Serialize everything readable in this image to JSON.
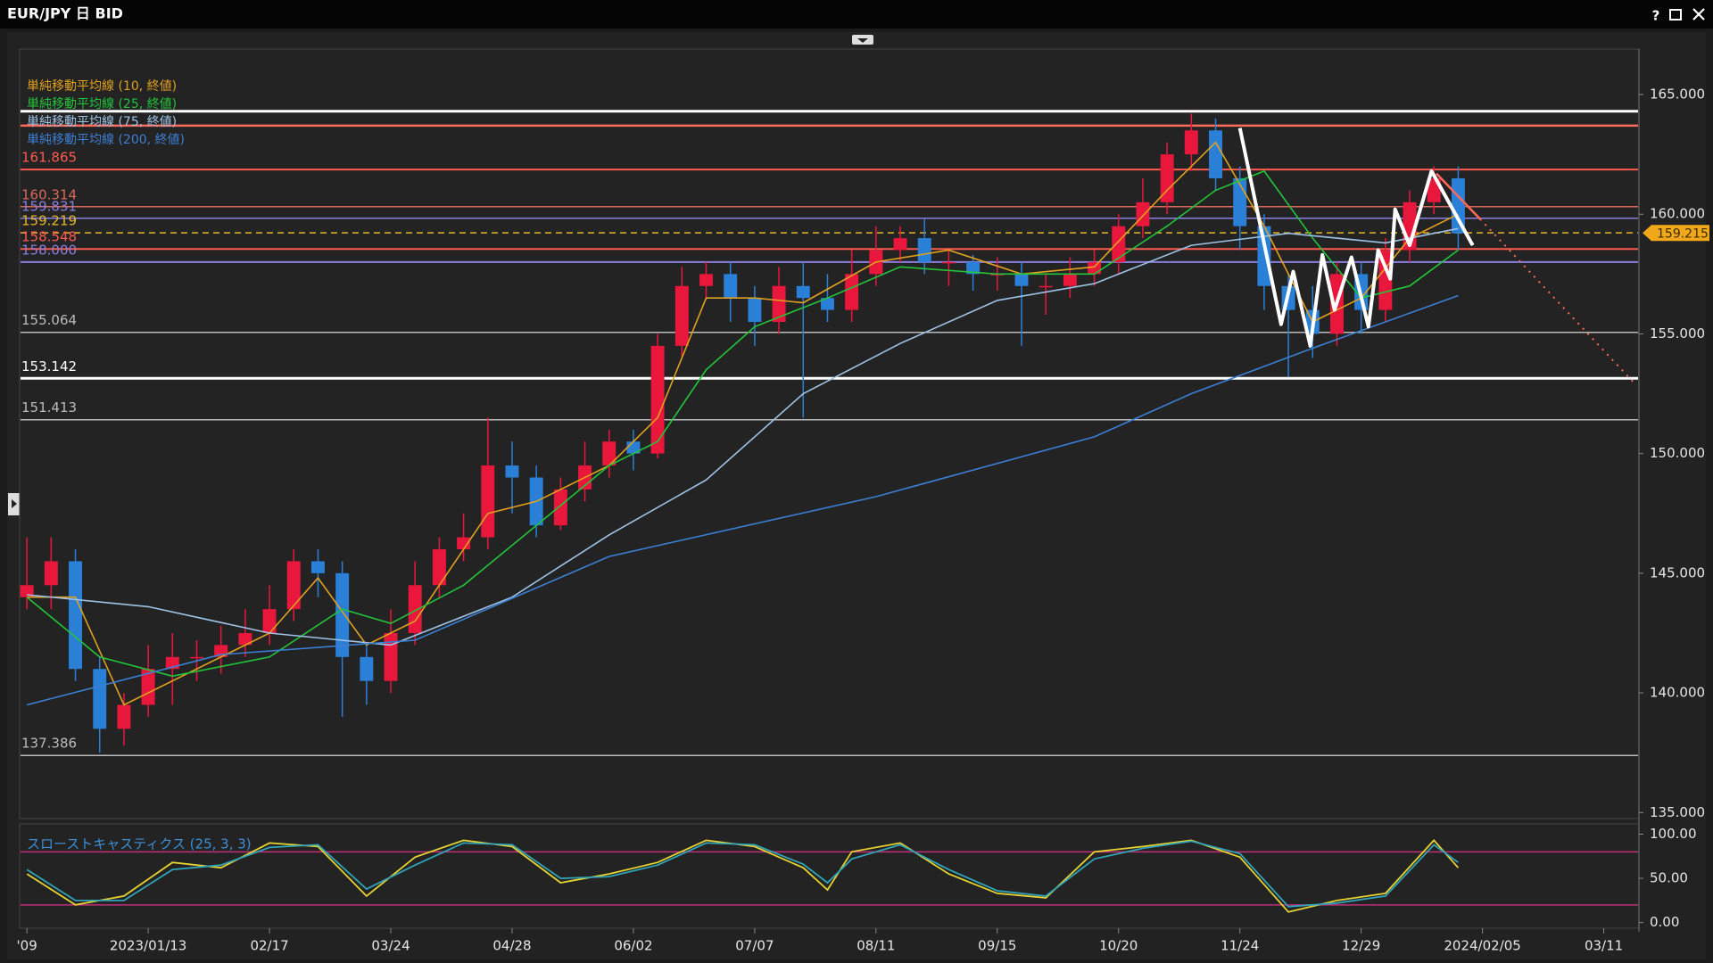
{
  "window": {
    "title": "EUR/JPY 日 BID",
    "help": "?"
  },
  "chart_data": [
    {
      "type": "candlestick",
      "xlim": [
        -0.3,
        66.45
      ],
      "ylim": [
        134.75,
        166.9
      ],
      "xticks": [
        {
          "value": 0,
          "label": "'09"
        },
        {
          "value": 5,
          "label": "2023/01/13"
        },
        {
          "value": 10,
          "label": "02/17"
        },
        {
          "value": 15,
          "label": "03/24"
        },
        {
          "value": 20,
          "label": "04/28"
        },
        {
          "value": 25,
          "label": "06/02"
        },
        {
          "value": 30,
          "label": "07/07"
        },
        {
          "value": 35,
          "label": "08/11"
        },
        {
          "value": 40,
          "label": "09/15"
        },
        {
          "value": 45,
          "label": "10/20"
        },
        {
          "value": 50,
          "label": "11/24"
        },
        {
          "value": 55,
          "label": "12/29"
        },
        {
          "value": 60,
          "label": "2024/02/05"
        },
        {
          "value": 65,
          "label": "03/11"
        }
      ],
      "yticks": [
        {
          "value": 135,
          "label": "135.000"
        },
        {
          "value": 140,
          "label": "140.000"
        },
        {
          "value": 145,
          "label": "145.000"
        },
        {
          "value": 150,
          "label": "150.000"
        },
        {
          "value": 155,
          "label": "155.000"
        },
        {
          "value": 160,
          "label": "160.000"
        },
        {
          "value": 165,
          "label": "165.000"
        }
      ],
      "up_color": "#e8173b",
      "down_color": "#2a7fd6",
      "x": [
        0,
        1,
        2,
        3,
        4,
        5,
        6,
        7,
        8,
        9,
        10,
        11,
        12,
        13,
        14,
        15,
        16,
        17,
        18,
        19,
        20,
        21,
        22,
        23,
        24,
        25,
        26,
        27,
        28,
        29,
        30,
        31,
        32,
        33,
        34,
        35,
        36,
        37,
        38,
        39,
        40,
        41,
        42,
        43,
        44,
        45,
        46,
        47,
        48,
        49,
        50,
        51,
        52,
        53,
        54,
        55,
        56,
        57,
        58,
        59
      ],
      "open": [
        144,
        144.5,
        145.5,
        141,
        138.5,
        139.5,
        141,
        141.5,
        141.5,
        142,
        142.5,
        143.5,
        145.5,
        145,
        141.5,
        140.5,
        142.5,
        144.5,
        146,
        146.5,
        149.5,
        149,
        147,
        148.5,
        149.5,
        150.5,
        150,
        154.5,
        157,
        157.5,
        156.5,
        155.5,
        157,
        156.5,
        156,
        157.5,
        158.5,
        159,
        158,
        158,
        157.5,
        157.5,
        157,
        157,
        157.5,
        158,
        159.5,
        160.5,
        162.5,
        163.5,
        161.5,
        159.5,
        157,
        156,
        155,
        157.5,
        156,
        158.5,
        160.5,
        161.5
      ],
      "high": [
        146.5,
        146.5,
        146,
        141.5,
        140,
        142,
        142.5,
        142.2,
        142.8,
        143.5,
        144.5,
        146,
        146,
        145.5,
        142,
        143.5,
        145.5,
        146.5,
        147.5,
        151.5,
        150.5,
        149.5,
        149,
        150.5,
        151,
        151,
        155,
        157.8,
        158,
        158,
        157,
        157.8,
        158,
        157.5,
        158.5,
        159.5,
        159.5,
        159.8,
        158.5,
        158.3,
        158.2,
        158,
        157.5,
        158.2,
        158.5,
        160,
        161.5,
        163,
        164.2,
        164,
        162,
        160,
        157.5,
        157,
        158,
        158,
        159,
        161,
        162,
        162
      ],
      "low": [
        143.5,
        143.5,
        140.5,
        137.5,
        137.8,
        139,
        139.5,
        140.5,
        140.8,
        141.5,
        142,
        143,
        144,
        139,
        139.5,
        140,
        142,
        144,
        145.5,
        146,
        147.5,
        146.5,
        146.8,
        148,
        149,
        149.3,
        149.8,
        154,
        156.5,
        155.5,
        154.5,
        155,
        151.5,
        155.5,
        155.5,
        157,
        158,
        157.5,
        157,
        156.8,
        156.8,
        154.5,
        155.8,
        156.5,
        157,
        157.5,
        159,
        160,
        161.8,
        161,
        158.5,
        156,
        153.2,
        154,
        154.5,
        155,
        155.5,
        158,
        160,
        158.5
      ],
      "close": [
        144.5,
        145.5,
        141,
        138.5,
        139.5,
        141,
        141.5,
        141.5,
        142,
        142.5,
        143.5,
        145.5,
        145,
        141.5,
        140.5,
        142.5,
        144.5,
        146,
        146.5,
        149.5,
        149,
        147,
        148.5,
        149.5,
        150.5,
        150,
        154.5,
        157,
        157.5,
        156.5,
        155.5,
        157,
        156.5,
        156,
        157.5,
        158.5,
        159,
        158,
        158,
        157.5,
        157.5,
        157,
        157,
        157.5,
        158,
        159.5,
        160.5,
        162.5,
        163.5,
        161.5,
        159.5,
        157,
        156,
        155,
        157.5,
        156,
        158.5,
        160.5,
        161.5,
        159.2
      ],
      "series": [
        {
          "name": "単純移動平均線 (10, 終値)",
          "color": "#e0a020",
          "x": [
            0,
            2,
            4,
            7,
            10,
            12,
            14,
            16,
            19,
            21,
            24,
            26,
            28,
            30,
            32,
            35,
            38,
            41,
            44,
            47,
            49,
            51,
            53,
            55,
            57,
            59
          ],
          "values": [
            144,
            144,
            139.5,
            141,
            142.5,
            144.8,
            142,
            143,
            147.5,
            148,
            149.5,
            151.5,
            156.5,
            156.5,
            156.3,
            158,
            158.5,
            157.5,
            157.8,
            161,
            163,
            159.5,
            155.5,
            156.5,
            159,
            160
          ]
        },
        {
          "name": "単純移動平均線 (25, 終値)",
          "color": "#22c43a",
          "x": [
            0,
            3,
            6,
            10,
            13,
            15,
            18,
            21,
            24,
            26,
            28,
            30,
            33,
            36,
            40,
            44,
            47,
            49,
            51,
            53,
            55,
            57,
            59
          ],
          "values": [
            144,
            141.5,
            140.7,
            141.5,
            143.5,
            142.9,
            144.5,
            147,
            149.5,
            150.5,
            153.5,
            155.3,
            156.5,
            157.8,
            157.5,
            157.5,
            159.5,
            161,
            161.8,
            159,
            156.5,
            157,
            158.5
          ]
        },
        {
          "name": "単純移動平均線 (75, 終値)",
          "color": "#9ec3e6",
          "x": [
            0,
            5,
            10,
            15,
            20,
            24,
            28,
            32,
            36,
            40,
            44,
            48,
            52,
            56,
            59
          ],
          "values": [
            144.1,
            143.6,
            142.5,
            142,
            144,
            146.6,
            148.9,
            152.5,
            154.6,
            156.4,
            157.1,
            158.7,
            159.2,
            158.8,
            159.4
          ]
        },
        {
          "name": "単純移動平均線 (200, 終値)",
          "color": "#3b7fd4",
          "x": [
            0,
            8,
            16,
            24,
            35,
            44,
            48,
            53,
            59
          ],
          "values": [
            139.5,
            141.6,
            142.2,
            145.7,
            148.2,
            150.7,
            152.5,
            154.4,
            156.6
          ]
        }
      ],
      "levels": [
        {
          "value": 164.3,
          "color": "#ffffff",
          "width": 3
        },
        {
          "value": 163.7,
          "color": "#ff6b5b",
          "width": 2.5
        },
        {
          "value": 161.865,
          "color": "#ff5a4f",
          "width": 2,
          "show_label": true
        },
        {
          "value": 160.314,
          "color": "#d9685a",
          "width": 1.5,
          "show_label": true
        },
        {
          "value": 159.831,
          "color": "#8a7ee0",
          "width": 1.5,
          "show_label": true
        },
        {
          "value": 159.219,
          "color": "#e7b52a",
          "width": 1.5,
          "dash": true,
          "show_label": true
        },
        {
          "value": 158.548,
          "color": "#ff5a4f",
          "width": 2,
          "show_label": true
        },
        {
          "value": 158.0,
          "label": "158.000",
          "color": "#8a7ee0",
          "width": 2,
          "show_label": true
        },
        {
          "value": 155.064,
          "color": "#bbbbbb",
          "width": 1.5,
          "show_label": true
        },
        {
          "value": 153.142,
          "color": "#ffffff",
          "width": 3,
          "show_label": true
        },
        {
          "value": 151.413,
          "color": "#bbbbbb",
          "width": 1.5,
          "show_label": true
        },
        {
          "value": 137.386,
          "color": "#bbbbbb",
          "width": 1.5,
          "show_label": true
        }
      ],
      "price_tag": {
        "value": 159.215,
        "label": "159.215",
        "color": "#f0a81a"
      },
      "drawings": [
        {
          "color": "#ffffff",
          "x": [
            50.0,
            51.7,
            52.2,
            52.9,
            53.4,
            53.9,
            54.6,
            55.3,
            55.7,
            56.2,
            56.4,
            57.0,
            57.9,
            59.6
          ],
          "y": [
            163.6,
            155.4,
            157.6,
            154.5,
            158.3,
            156.0,
            158.2,
            155.3,
            158.5,
            157.3,
            160.2,
            158.7,
            161.8,
            158.7
          ]
        },
        {
          "color": "#ff6b5b",
          "x": [
            58.1,
            59.9
          ],
          "y": [
            161.7,
            159.8
          ]
        },
        {
          "color": "#ff6b5b",
          "dash": true,
          "x": [
            59.9,
            66.3
          ],
          "y": [
            159.8,
            152.9
          ]
        }
      ]
    },
    {
      "type": "stochastic",
      "title": "スローストキャスティクス (25, 3, 3)",
      "title_color": "#3d8fd6",
      "ylim": [
        -6.4,
        111.6
      ],
      "yticks": [
        {
          "value": 0,
          "label": "0.00"
        },
        {
          "value": 50,
          "label": "50.00"
        },
        {
          "value": 100,
          "label": "100.00"
        }
      ],
      "bands": [
        20,
        80
      ],
      "band_color": "#c0307a",
      "series": [
        {
          "color": "#e6d232",
          "x": [
            0,
            2,
            4,
            6,
            8,
            10,
            12,
            14,
            16,
            18,
            20,
            22,
            24,
            26,
            28,
            30,
            32,
            33,
            34,
            36,
            38,
            40,
            42,
            44,
            46,
            48,
            50,
            52,
            54,
            56,
            58,
            59
          ],
          "values": [
            55,
            20,
            30,
            68,
            62,
            90,
            86,
            30,
            74,
            93,
            86,
            45,
            55,
            68,
            93,
            86,
            62,
            37,
            80,
            90,
            55,
            33,
            28,
            80,
            86,
            93,
            74,
            12,
            25,
            33,
            93,
            62
          ]
        },
        {
          "color": "#2fa3b8",
          "x": [
            0,
            2,
            4,
            6,
            8,
            10,
            12,
            14,
            16,
            18,
            20,
            22,
            24,
            26,
            28,
            30,
            32,
            33,
            34,
            36,
            38,
            40,
            42,
            44,
            46,
            48,
            50,
            52,
            54,
            56,
            58,
            59
          ],
          "values": [
            60,
            25,
            25,
            60,
            65,
            85,
            88,
            38,
            65,
            90,
            88,
            50,
            52,
            65,
            90,
            88,
            66,
            45,
            72,
            88,
            60,
            36,
            30,
            72,
            84,
            92,
            78,
            18,
            22,
            30,
            88,
            68
          ]
        }
      ]
    }
  ]
}
